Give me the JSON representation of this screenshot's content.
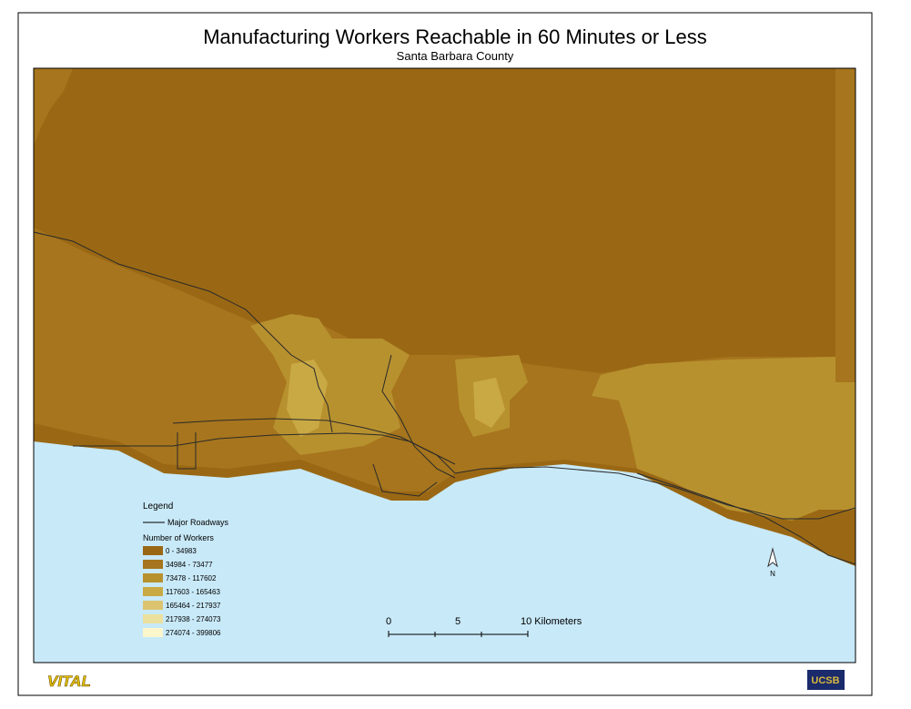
{
  "map": {
    "title": "Manufacturing Workers Reachable in 60 Minutes or Less",
    "subtitle": "Santa Barbara County",
    "legend": {
      "title": "Legend",
      "roads_label": "Major Roadways",
      "class_title": "Number of Workers",
      "classes": [
        {
          "label": "0 - 34983",
          "color": "#9a6814"
        },
        {
          "label": "34984 - 73477",
          "color": "#a6751d"
        },
        {
          "label": "73478 - 117602",
          "color": "#b8912f"
        },
        {
          "label": "117603 - 165463",
          "color": "#c9a944"
        },
        {
          "label": "165464 - 217937",
          "color": "#dcc370"
        },
        {
          "label": "217938 - 274073",
          "color": "#ece09e"
        },
        {
          "label": "274074 - 399806",
          "color": "#fbf6cc"
        }
      ]
    },
    "scale": {
      "labels": [
        "0",
        "5",
        "10 Kilometers"
      ]
    },
    "north": "N",
    "logos": {
      "left": "VITAL",
      "right": "UCSB"
    }
  }
}
